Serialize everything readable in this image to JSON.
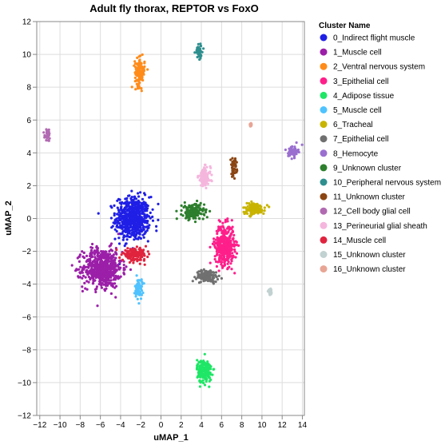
{
  "chart_data": {
    "type": "scatter",
    "title": "Adult fly thorax, REPTOR vs FoxO",
    "xlabel": "uMAP_1",
    "ylabel": "uMAP_2",
    "xlim": [
      -12.3,
      14.2
    ],
    "ylim": [
      -12,
      12
    ],
    "xticks": [
      -12,
      -10,
      -8,
      -6,
      -4,
      -2,
      0,
      2,
      4,
      6,
      8,
      10,
      12,
      14
    ],
    "xtick_labels": [
      "−12",
      "−10",
      "−8",
      "−6",
      "−4",
      "−2",
      "0",
      "2",
      "4",
      "6",
      "8",
      "10",
      "12",
      "14"
    ],
    "yticks": [
      -12,
      -10,
      -8,
      -6,
      -4,
      -2,
      0,
      2,
      4,
      6,
      8,
      10,
      12
    ],
    "ytick_labels": [
      "−12",
      "−10",
      "−8",
      "−6",
      "−4",
      "−2",
      "0",
      "2",
      "4",
      "6",
      "8",
      "10",
      "12"
    ],
    "grid": true,
    "legend_title": "Cluster Name",
    "legend_position": "right",
    "series": [
      {
        "name": "0_Indirect flight muscle",
        "color": "#1f1fe6",
        "center": [
          -2.8,
          0.0
        ],
        "spread": [
          1.4,
          1.1
        ]
      },
      {
        "name": "1_Muscle cell",
        "color": "#9b1fa8",
        "center": [
          -5.8,
          -3.0
        ],
        "spread": [
          1.6,
          1.0
        ]
      },
      {
        "name": "2_Ventral nervous system",
        "color": "#ff8c1a",
        "center": [
          -2.1,
          8.9
        ],
        "spread": [
          0.4,
          0.7
        ]
      },
      {
        "name": "3_Epithelial cell",
        "color": "#ff1f8a",
        "center": [
          6.3,
          -1.6
        ],
        "spread": [
          0.8,
          1.0
        ]
      },
      {
        "name": "4_Adipose tissue",
        "color": "#1fe666",
        "center": [
          4.3,
          -9.3
        ],
        "spread": [
          0.6,
          0.6
        ]
      },
      {
        "name": "5_Muscle cell",
        "color": "#4fc3ff",
        "center": [
          -2.2,
          -4.3
        ],
        "spread": [
          0.3,
          0.5
        ]
      },
      {
        "name": "6_Tracheal",
        "color": "#c8b400",
        "center": [
          9.2,
          0.6
        ],
        "spread": [
          0.9,
          0.3
        ]
      },
      {
        "name": "7_Epithelial cell",
        "color": "#707070",
        "center": [
          4.6,
          -3.5
        ],
        "spread": [
          0.9,
          0.3
        ]
      },
      {
        "name": "8_Hemocyte",
        "color": "#9a6fd0",
        "center": [
          13.1,
          4.1
        ],
        "spread": [
          0.4,
          0.3
        ]
      },
      {
        "name": "9_Unknown cluster",
        "color": "#2d7f2d",
        "center": [
          3.2,
          0.4
        ],
        "spread": [
          0.9,
          0.4
        ]
      },
      {
        "name": "10_Peripheral nervous system",
        "color": "#2f8f8f",
        "center": [
          3.8,
          10.2
        ],
        "spread": [
          0.3,
          0.35
        ]
      },
      {
        "name": "11_Unknown cluster",
        "color": "#8b4513",
        "center": [
          7.2,
          3.1
        ],
        "spread": [
          0.25,
          0.45
        ]
      },
      {
        "name": "12_Cell body glial cell",
        "color": "#b16ab1",
        "center": [
          -11.2,
          5.1
        ],
        "spread": [
          0.25,
          0.3
        ]
      },
      {
        "name": "13_Perineurial glial sheath",
        "color": "#f5b6dd",
        "center": [
          4.3,
          2.5
        ],
        "spread": [
          0.5,
          0.5
        ]
      },
      {
        "name": "14_Muscle cell",
        "color": "#e0243e",
        "center": [
          -2.6,
          -2.2
        ],
        "spread": [
          1.0,
          0.3
        ]
      },
      {
        "name": "15_Unknown cluster",
        "color": "#c2d1d1",
        "center": [
          10.8,
          -4.5
        ],
        "spread": [
          0.15,
          0.15
        ]
      },
      {
        "name": "16_Unknown cluster",
        "color": "#e8a595",
        "center": [
          8.9,
          5.7
        ],
        "spread": [
          0.06,
          0.06
        ]
      }
    ]
  }
}
